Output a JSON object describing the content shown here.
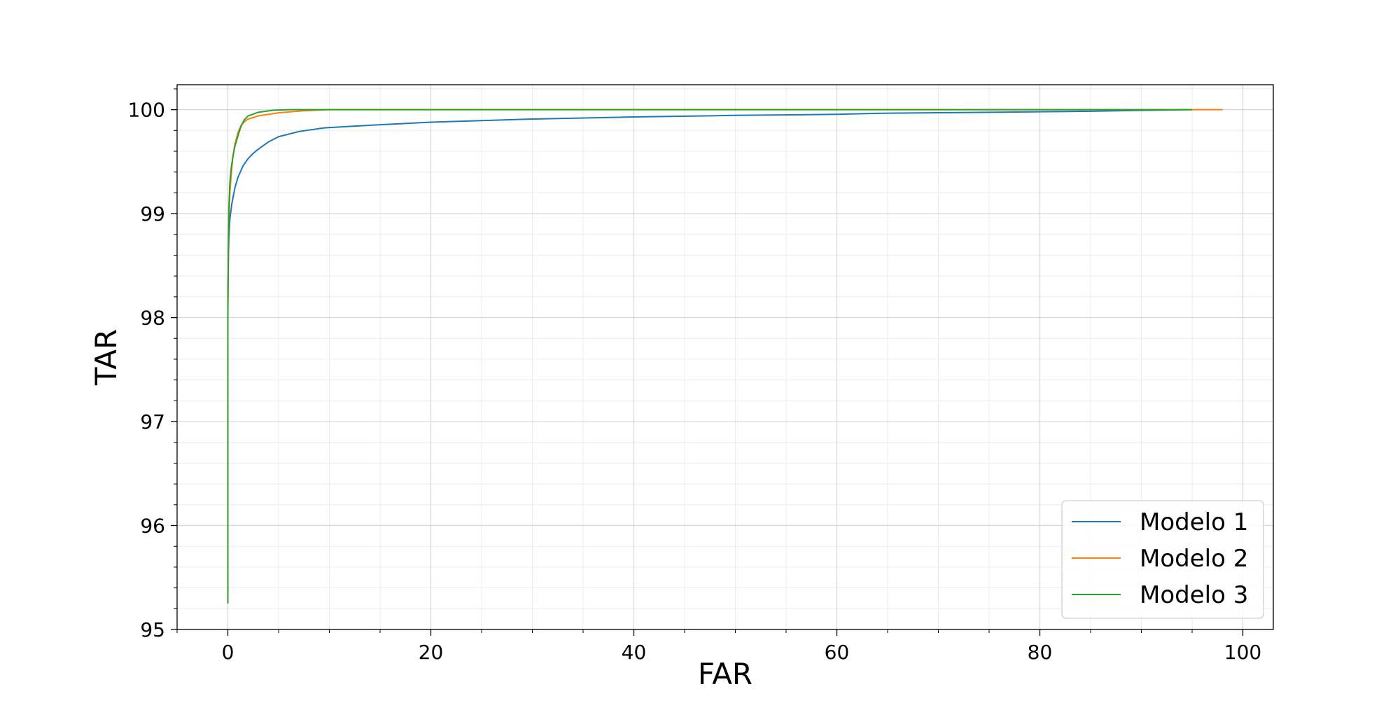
{
  "chart_data": {
    "type": "line",
    "title": "",
    "xlabel": "FAR",
    "ylabel": "TAR",
    "xlim": [
      -5,
      103
    ],
    "ylim": [
      95,
      100.24
    ],
    "x_ticks": [
      0,
      20,
      40,
      60,
      80,
      100
    ],
    "y_ticks": [
      95,
      96,
      97,
      98,
      99,
      100
    ],
    "x_tick_labels": [
      "0",
      "20",
      "40",
      "60",
      "80",
      "100"
    ],
    "y_tick_labels": [
      "95",
      "96",
      "97",
      "98",
      "99",
      "100"
    ],
    "x_minor_step": 5,
    "y_minor_step": 0.2,
    "grid": true,
    "legend_position": "lower-right",
    "colors": {
      "Modelo 1": "#1f77b4",
      "Modelo 2": "#ff7f0e",
      "Modelo 3": "#2ca02c"
    },
    "series": [
      {
        "name": "Modelo 1",
        "x": [
          0,
          0.05,
          0.1,
          0.2,
          0.4,
          0.7,
          1.0,
          1.5,
          2.0,
          2.5,
          3.0,
          4.0,
          5.0,
          7.0,
          9.5,
          14,
          20,
          30,
          40,
          50,
          60,
          64,
          75,
          85,
          90,
          95
        ],
        "y": [
          98.2,
          98.55,
          98.75,
          98.95,
          99.1,
          99.25,
          99.35,
          99.46,
          99.53,
          99.58,
          99.62,
          99.69,
          99.74,
          99.79,
          99.825,
          99.85,
          99.88,
          99.91,
          99.93,
          99.945,
          99.955,
          99.965,
          99.975,
          99.985,
          99.993,
          100.0
        ]
      },
      {
        "name": "Modelo 2",
        "x": [
          0,
          0.05,
          0.1,
          0.2,
          0.35,
          0.5,
          0.7,
          1.0,
          1.3,
          1.7,
          2.0,
          3.0,
          5.0,
          7.5,
          10,
          20,
          40,
          60,
          80,
          95,
          98
        ],
        "y": [
          98.1,
          98.6,
          98.95,
          99.2,
          99.4,
          99.55,
          99.67,
          99.78,
          99.85,
          99.89,
          99.91,
          99.94,
          99.97,
          99.99,
          100.0,
          100.0,
          100.0,
          100.0,
          100.0,
          100.0,
          100.0
        ]
      },
      {
        "name": "Modelo 3",
        "x": [
          0,
          0,
          0.05,
          0.1,
          0.2,
          0.35,
          0.5,
          0.7,
          1.0,
          1.3,
          1.6,
          2.0,
          3.0,
          4.5,
          6.0,
          10,
          20,
          40,
          60,
          80,
          95
        ],
        "y": [
          95.25,
          98.0,
          98.7,
          99.05,
          99.3,
          99.45,
          99.55,
          99.65,
          99.75,
          99.84,
          99.9,
          99.94,
          99.975,
          99.995,
          100.0,
          100.0,
          100.0,
          100.0,
          100.0,
          100.0,
          100.0
        ]
      }
    ]
  }
}
